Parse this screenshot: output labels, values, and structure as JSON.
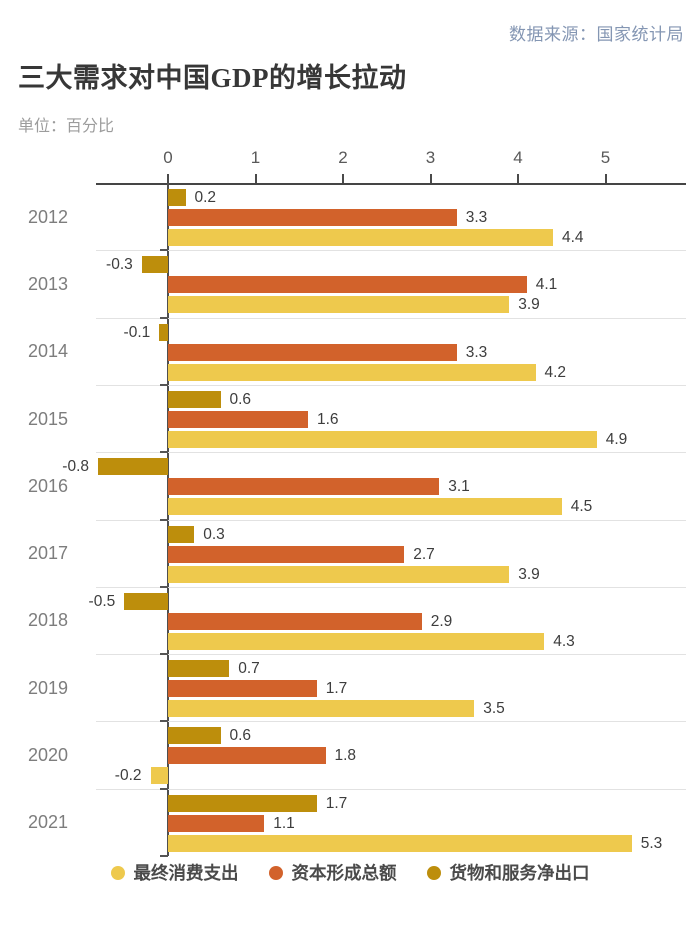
{
  "header": {
    "source": "数据来源：国家统计局",
    "title": "三大需求对中国GDP的增长拉动",
    "unit_label": "单位：百分比"
  },
  "colors": {
    "consumption": "#EEC94D",
    "capital": "#D2622B",
    "net_exports": "#BD8E0C",
    "axis": "#454545",
    "separator": "#e2e2e2",
    "source_text": "#8496B3"
  },
  "chart_data": {
    "type": "bar",
    "orientation": "horizontal",
    "title": "三大需求对中国GDP的增长拉动",
    "unit": "百分比",
    "categories": [
      "2012",
      "2013",
      "2014",
      "2015",
      "2016",
      "2017",
      "2018",
      "2019",
      "2020",
      "2021"
    ],
    "series": [
      {
        "id": "net_exports",
        "name": "货物和服务净出口",
        "color": "#BD8E0C",
        "values": [
          0.2,
          -0.3,
          -0.1,
          0.6,
          -0.8,
          0.3,
          -0.5,
          0.7,
          0.6,
          1.7
        ]
      },
      {
        "id": "capital",
        "name": "资本形成总额",
        "color": "#D2622B",
        "values": [
          3.3,
          4.1,
          3.3,
          1.6,
          3.1,
          2.7,
          2.9,
          1.7,
          1.8,
          1.1
        ]
      },
      {
        "id": "consumption",
        "name": "最终消费支出",
        "color": "#EEC94D",
        "values": [
          4.4,
          3.9,
          4.2,
          4.9,
          4.5,
          3.9,
          4.3,
          3.5,
          -0.2,
          5.3
        ]
      }
    ],
    "x_ticks": [
      0,
      1,
      2,
      3,
      4,
      5
    ],
    "xlim": [
      -0.9,
      5.9
    ],
    "value_labels": true,
    "grid": "row-separators",
    "legend_position": "bottom",
    "legend_order": [
      "consumption",
      "capital",
      "net_exports"
    ]
  }
}
